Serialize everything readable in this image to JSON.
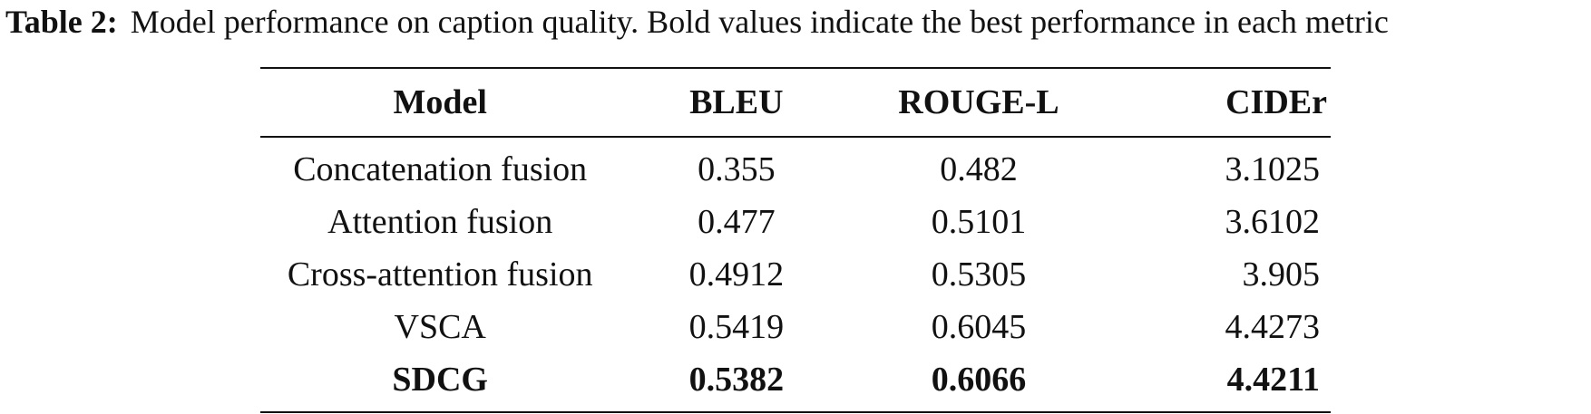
{
  "caption": {
    "label": "Table 2:",
    "text": "Model performance on caption quality. Bold values indicate the best performance in each metric"
  },
  "table": {
    "headers": {
      "model": "Model",
      "bleu": "BLEU",
      "rouge": "ROUGE-L",
      "cider": "CIDEr"
    },
    "rows": [
      {
        "model": "Concatenation fusion",
        "bleu": "0.355",
        "rouge": "0.482",
        "cider": "3.1025"
      },
      {
        "model": "Attention fusion",
        "bleu": "0.477",
        "rouge": "0.5101",
        "cider": "3.6102"
      },
      {
        "model": "Cross-attention fusion",
        "bleu": "0.4912",
        "rouge": "0.5305",
        "cider": "3.905"
      },
      {
        "model": "VSCA",
        "bleu": "0.5419",
        "rouge": "0.6045",
        "cider": "4.4273"
      },
      {
        "model": "SDCG",
        "bleu": "0.5382",
        "rouge": "0.6066",
        "cider": "4.4211"
      }
    ]
  }
}
